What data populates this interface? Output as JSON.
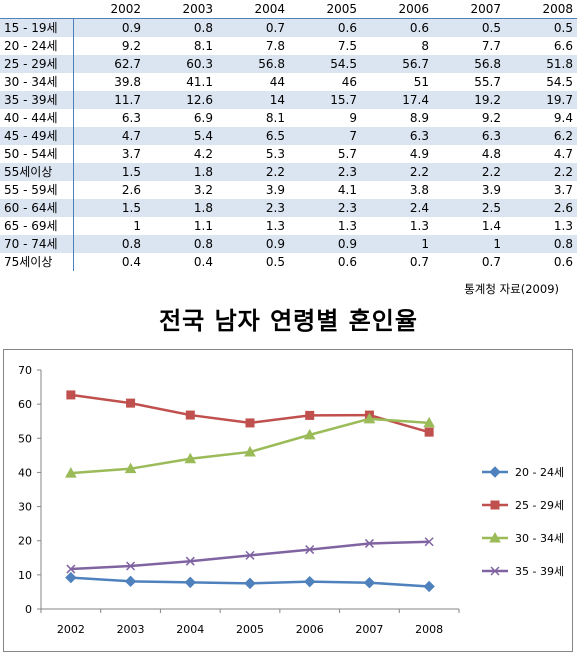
{
  "table": {
    "headers": [
      "",
      "2002",
      "2003",
      "2004",
      "2005",
      "2006",
      "2007",
      "2008"
    ],
    "rows": [
      [
        "15 - 19세",
        "0.9",
        "0.8",
        "0.7",
        "0.6",
        "0.6",
        "0.5",
        "0.5"
      ],
      [
        "20 - 24세",
        "9.2",
        "8.1",
        "7.8",
        "7.5",
        "8",
        "7.7",
        "6.6"
      ],
      [
        "25 - 29세",
        "62.7",
        "60.3",
        "56.8",
        "54.5",
        "56.7",
        "56.8",
        "51.8"
      ],
      [
        "30 - 34세",
        "39.8",
        "41.1",
        "44",
        "46",
        "51",
        "55.7",
        "54.5"
      ],
      [
        "35 - 39세",
        "11.7",
        "12.6",
        "14",
        "15.7",
        "17.4",
        "19.2",
        "19.7"
      ],
      [
        "40 - 44세",
        "6.3",
        "6.9",
        "8.1",
        "9",
        "8.9",
        "9.2",
        "9.4"
      ],
      [
        "45 - 49세",
        "4.7",
        "5.4",
        "6.5",
        "7",
        "6.3",
        "6.3",
        "6.2"
      ],
      [
        "50 - 54세",
        "3.7",
        "4.2",
        "5.3",
        "5.7",
        "4.9",
        "4.8",
        "4.7"
      ],
      [
        "55세이상",
        "1.5",
        "1.8",
        "2.2",
        "2.3",
        "2.2",
        "2.2",
        "2.2"
      ],
      [
        "55 - 59세",
        "2.6",
        "3.2",
        "3.9",
        "4.1",
        "3.8",
        "3.9",
        "3.7"
      ],
      [
        "60 - 64세",
        "1.5",
        "1.8",
        "2.3",
        "2.3",
        "2.4",
        "2.5",
        "2.6"
      ],
      [
        "65 - 69세",
        "1",
        "1.1",
        "1.3",
        "1.3",
        "1.3",
        "1.4",
        "1.3"
      ],
      [
        "70 - 74세",
        "0.8",
        "0.8",
        "0.9",
        "0.9",
        "1",
        "1",
        "0.8"
      ],
      [
        "75세이상",
        "0.4",
        "0.4",
        "0.5",
        "0.6",
        "0.7",
        "0.7",
        "0.6"
      ]
    ]
  },
  "source": "통계청 자료(2009)",
  "title": "전국 남자 연령별 혼인율",
  "chart_data": {
    "type": "line",
    "categories": [
      "2002",
      "2003",
      "2004",
      "2005",
      "2006",
      "2007",
      "2008"
    ],
    "ylim": [
      0,
      70
    ],
    "yticks": [
      "0",
      "10",
      "20",
      "30",
      "40",
      "50",
      "60",
      "70"
    ],
    "grid": false,
    "legend": "right",
    "series": [
      {
        "name": "20 - 24세",
        "values": [
          9.2,
          8.1,
          7.8,
          7.5,
          8,
          7.7,
          6.6
        ],
        "color": "#4f81bd",
        "marker": "diamond"
      },
      {
        "name": "25 - 29세",
        "values": [
          62.7,
          60.3,
          56.8,
          54.5,
          56.7,
          56.8,
          51.8
        ],
        "color": "#c0504d",
        "marker": "square"
      },
      {
        "name": "30 - 34세",
        "values": [
          39.8,
          41.1,
          44,
          46,
          51,
          55.7,
          54.5
        ],
        "color": "#9bbb59",
        "marker": "triangle"
      },
      {
        "name": "35 - 39세",
        "values": [
          11.7,
          12.6,
          14,
          15.7,
          17.4,
          19.2,
          19.7
        ],
        "color": "#8064a2",
        "marker": "x"
      }
    ]
  }
}
